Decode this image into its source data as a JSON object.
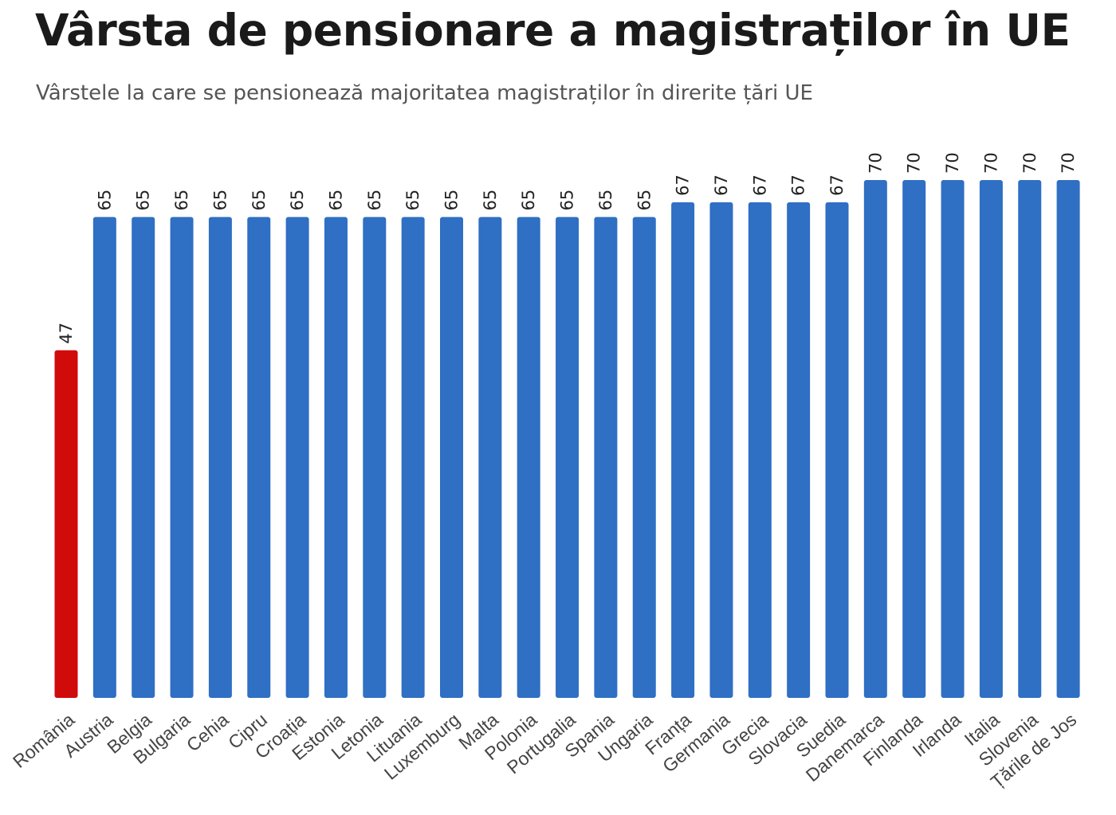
{
  "chart_data": {
    "type": "bar",
    "title": "Vârsta de pensionare a magistraților în UE",
    "subtitle": "Vârstele la care se pensionează majoritatea magistraților în direrite țări UE",
    "xlabel": "",
    "ylabel": "",
    "ylim": [
      0,
      70
    ],
    "grid": false,
    "categories": [
      "România",
      "Austria",
      "Belgia",
      "Bulgaria",
      "Cehia",
      "Cipru",
      "Croația",
      "Estonia",
      "Letonia",
      "Lituania",
      "Luxemburg",
      "Malta",
      "Polonia",
      "Portugalia",
      "Spania",
      "Ungaria",
      "Franța",
      "Germania",
      "Grecia",
      "Slovacia",
      "Suedia",
      "Danemarca",
      "Finlanda",
      "Irlanda",
      "Italia",
      "Slovenia",
      "Țările de Jos"
    ],
    "values": [
      47,
      65,
      65,
      65,
      65,
      65,
      65,
      65,
      65,
      65,
      65,
      65,
      65,
      65,
      65,
      65,
      67,
      67,
      67,
      67,
      67,
      70,
      70,
      70,
      70,
      70,
      70
    ],
    "colors": {
      "highlight": "#d10a0a",
      "default": "#2f6fc4"
    },
    "highlight_category": "România"
  }
}
